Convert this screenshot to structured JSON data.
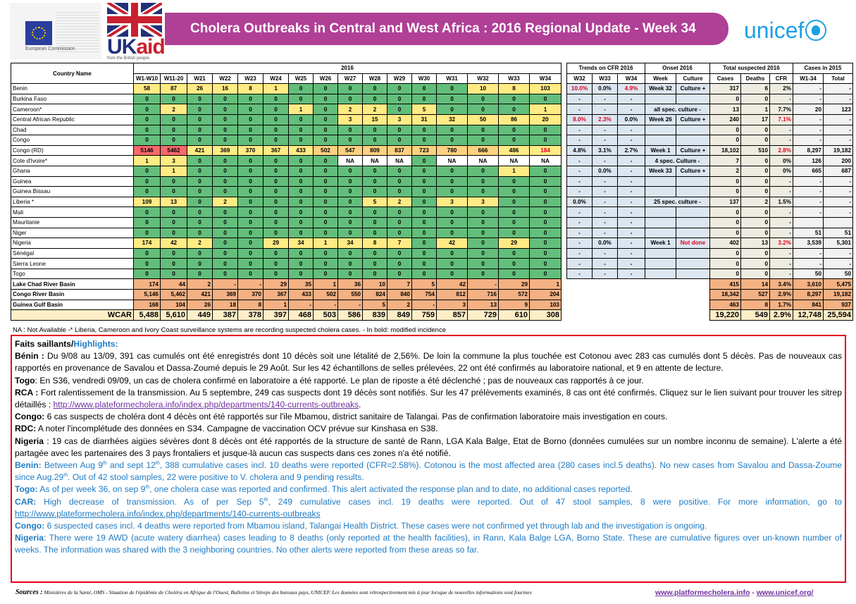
{
  "header": {
    "ec_logo_text": "European Commission",
    "ukaid_uk": "UK",
    "ukaid_aid": "aid",
    "ukaid_sub": "from the British people",
    "title": "Cholera Outbreaks in Central and West Africa : 2016 Regional Update - Week 34",
    "unicef_text": "unicef"
  },
  "table": {
    "headers": {
      "country": "Country Name",
      "year": "2016",
      "weeks": [
        "W1-W10",
        "W11-20",
        "W21",
        "W22",
        "W23",
        "W24",
        "W25",
        "W26",
        "W27",
        "W28",
        "W29",
        "W30",
        "W31",
        "W32",
        "W33",
        "W34"
      ],
      "trends": "Trends on CFR 2016",
      "trend_weeks": [
        "W32",
        "W33",
        "W34"
      ],
      "onset": "Onset 2016",
      "onset_cols": [
        "Week",
        "Culture"
      ],
      "total": "Total suspected 2016",
      "total_cols": [
        "Cases",
        "Deaths",
        "CFR"
      ],
      "cases2015": "Cases in 2015",
      "cases2015_cols": [
        "W1-34",
        "Total"
      ]
    },
    "rows": [
      {
        "name": "Benin",
        "weeks": [
          "58",
          "87",
          "26",
          "16",
          "8",
          "1",
          "0",
          "0",
          "0",
          "0",
          "0",
          "0",
          "0",
          "10",
          "8",
          "103"
        ],
        "trends": [
          "10.0%",
          "0.0%",
          "4.9%"
        ],
        "onset_week": "Week 32",
        "onset_culture": "Culture +",
        "cases": "317",
        "deaths": "6",
        "cfr": "2%",
        "w134": "-",
        "total2015": "-"
      },
      {
        "name": "Burkina Faso",
        "weeks": [
          "0",
          "0",
          "0",
          "0",
          "0",
          "0",
          "0",
          "0",
          "0",
          "0",
          "0",
          "0",
          "0",
          "0",
          "0",
          "0"
        ],
        "trends": [
          "-",
          "-",
          "-"
        ],
        "onset_week": "",
        "onset_culture": "",
        "cases": "0",
        "deaths": "0",
        "cfr": "-",
        "w134": "-",
        "total2015": "-"
      },
      {
        "name": "Cameroon*",
        "weeks": [
          "0",
          "2",
          "0",
          "0",
          "0",
          "0",
          "1",
          "0",
          "2",
          "2",
          "0",
          "5",
          "0",
          "0",
          "0",
          "1"
        ],
        "trends": [
          "-",
          "-",
          "-"
        ],
        "onset_merged": "all spec. culture -",
        "cases": "13",
        "deaths": "1",
        "cfr": "7.7%",
        "w134": "20",
        "total2015": "123"
      },
      {
        "name": "Central African Republic",
        "weeks": [
          "0",
          "0",
          "0",
          "0",
          "0",
          "0",
          "0",
          "0",
          "3",
          "15",
          "3",
          "31",
          "32",
          "50",
          "86",
          "20"
        ],
        "trends": [
          "8.0%",
          "2.3%",
          "0.0%"
        ],
        "onset_week": "Week 26",
        "onset_culture": "Culture +",
        "cases": "240",
        "deaths": "17",
        "cfr": "7.1%",
        "w134": "-",
        "total2015": "-"
      },
      {
        "name": "Chad",
        "weeks": [
          "0",
          "0",
          "0",
          "0",
          "0",
          "0",
          "0",
          "0",
          "0",
          "0",
          "0",
          "0",
          "0",
          "0",
          "0",
          "0"
        ],
        "trends": [
          "-",
          "-",
          "-"
        ],
        "onset_week": "",
        "onset_culture": "",
        "cases": "0",
        "deaths": "0",
        "cfr": "-",
        "w134": "-",
        "total2015": "-"
      },
      {
        "name": "Congo",
        "weeks": [
          "0",
          "0",
          "0",
          "0",
          "0",
          "0",
          "0",
          "0",
          "0",
          "0",
          "0",
          "0",
          "0",
          "0",
          "0",
          "0"
        ],
        "trends": [
          "-",
          "-",
          "-"
        ],
        "onset_week": "",
        "onset_culture": "",
        "cases": "0",
        "deaths": "0",
        "cfr": "-",
        "w134": "-",
        "total2015": "-"
      },
      {
        "name": "Congo (RD)",
        "weeks": [
          "5146",
          "5462",
          "421",
          "369",
          "370",
          "367",
          "433",
          "502",
          "547",
          "809",
          "837",
          "723",
          "780",
          "666",
          "486",
          "184"
        ],
        "trends": [
          "4.8%",
          "3.1%",
          "2.7%"
        ],
        "onset_week": "Week 1",
        "onset_culture": "Culture +",
        "cases": "18,102",
        "deaths": "510",
        "cfr": "2.8%",
        "w134": "8,297",
        "total2015": "19,182"
      },
      {
        "name": "Cote d'Ivoire*",
        "weeks": [
          "1",
          "3",
          "0",
          "0",
          "0",
          "0",
          "0",
          "0",
          "NA",
          "NA",
          "NA",
          "0",
          "NA",
          "NA",
          "NA",
          "NA"
        ],
        "trends": [
          "-",
          "-",
          "-"
        ],
        "onset_merged": "4 spec. Culture -",
        "cases": "7",
        "deaths": "0",
        "cfr": "0%",
        "w134": "126",
        "total2015": "200"
      },
      {
        "name": "Ghana",
        "weeks": [
          "0",
          "1",
          "0",
          "0",
          "0",
          "0",
          "0",
          "0",
          "0",
          "0",
          "0",
          "0",
          "0",
          "0",
          "1",
          "0"
        ],
        "trends": [
          "-",
          "0.0%",
          "-"
        ],
        "onset_week": "Week 33",
        "onset_culture": "Culture +",
        "cases": "2",
        "deaths": "0",
        "cfr": "0%",
        "w134": "665",
        "total2015": "687"
      },
      {
        "name": "Guinea",
        "weeks": [
          "0",
          "0",
          "0",
          "0",
          "0",
          "0",
          "0",
          "0",
          "0",
          "0",
          "0",
          "0",
          "0",
          "0",
          "0",
          "0"
        ],
        "trends": [
          "-",
          "-",
          "-"
        ],
        "onset_week": "",
        "onset_culture": "",
        "cases": "0",
        "deaths": "0",
        "cfr": "-",
        "w134": "-",
        "total2015": "-"
      },
      {
        "name": "Guinea Bissau",
        "weeks": [
          "0",
          "0",
          "0",
          "0",
          "0",
          "0",
          "0",
          "0",
          "0",
          "0",
          "0",
          "0",
          "0",
          "0",
          "0",
          "0"
        ],
        "trends": [
          "-",
          "-",
          "-"
        ],
        "onset_week": "",
        "onset_culture": "",
        "cases": "0",
        "deaths": "0",
        "cfr": "-",
        "w134": "-",
        "total2015": "-"
      },
      {
        "name": "Liberia *",
        "weeks": [
          "109",
          "13",
          "0",
          "2",
          "0",
          "0",
          "0",
          "0",
          "0",
          "5",
          "2",
          "0",
          "3",
          "3",
          "0",
          "0"
        ],
        "trends": [
          "0.0%",
          "-",
          "-"
        ],
        "onset_merged": "25 spec. culture -",
        "cases": "137",
        "deaths": "2",
        "cfr": "1.5%",
        "w134": "-",
        "total2015": "-"
      },
      {
        "name": "Mali",
        "weeks": [
          "0",
          "0",
          "0",
          "0",
          "0",
          "0",
          "0",
          "0",
          "0",
          "0",
          "0",
          "0",
          "0",
          "0",
          "0",
          "0"
        ],
        "trends": [
          "-",
          "-",
          "-"
        ],
        "onset_week": "",
        "onset_culture": "",
        "cases": "0",
        "deaths": "0",
        "cfr": "-",
        "w134": "-",
        "total2015": "-"
      },
      {
        "name": "Mauritanie",
        "weeks": [
          "0",
          "0",
          "0",
          "0",
          "0",
          "0",
          "0",
          "0",
          "0",
          "0",
          "0",
          "0",
          "0",
          "0",
          "0",
          "0"
        ],
        "trends": [
          "-",
          "-",
          "-"
        ],
        "onset_week": "",
        "onset_culture": "",
        "cases": "0",
        "deaths": "0",
        "cfr": "-",
        "w134": "",
        "total2015": ""
      },
      {
        "name": "Niger",
        "weeks": [
          "0",
          "0",
          "0",
          "0",
          "0",
          "0",
          "0",
          "0",
          "0",
          "0",
          "0",
          "0",
          "0",
          "0",
          "0",
          "0"
        ],
        "trends": [
          "-",
          "-",
          "-"
        ],
        "onset_week": "",
        "onset_culture": "",
        "cases": "0",
        "deaths": "0",
        "cfr": "-",
        "w134": "51",
        "total2015": "51"
      },
      {
        "name": "Nigeria",
        "weeks": [
          "174",
          "42",
          "2",
          "0",
          "0",
          "29",
          "34",
          "1",
          "34",
          "8",
          "7",
          "0",
          "42",
          "0",
          "29",
          "0"
        ],
        "trends": [
          "-",
          "0.0%",
          "-"
        ],
        "onset_week": "Week 1",
        "onset_culture": "Not done",
        "cases": "402",
        "deaths": "13",
        "cfr": "3.2%",
        "w134": "3,539",
        "total2015": "5,301"
      },
      {
        "name": "Sénégal",
        "weeks": [
          "0",
          "0",
          "0",
          "0",
          "0",
          "0",
          "0",
          "0",
          "0",
          "0",
          "0",
          "0",
          "0",
          "0",
          "0",
          "0"
        ],
        "trends": [
          "-",
          "-",
          "-"
        ],
        "onset_week": "",
        "onset_culture": "",
        "cases": "0",
        "deaths": "0",
        "cfr": "-",
        "w134": "-",
        "total2015": "-"
      },
      {
        "name": "Sierra Leone",
        "weeks": [
          "0",
          "0",
          "0",
          "0",
          "0",
          "0",
          "0",
          "0",
          "0",
          "0",
          "0",
          "0",
          "0",
          "0",
          "0",
          "0"
        ],
        "trends": [
          "-",
          "-",
          "-"
        ],
        "onset_week": "",
        "onset_culture": "",
        "cases": "0",
        "deaths": "0",
        "cfr": "-",
        "w134": "-",
        "total2015": "-"
      },
      {
        "name": "Togo",
        "weeks": [
          "0",
          "0",
          "0",
          "0",
          "0",
          "0",
          "0",
          "0",
          "0",
          "0",
          "0",
          "0",
          "0",
          "0",
          "0",
          "0"
        ],
        "trends": [
          "-",
          "-",
          "-"
        ],
        "onset_week": "",
        "onset_culture": "",
        "cases": "0",
        "deaths": "0",
        "cfr": "-",
        "w134": "50",
        "total2015": "50"
      }
    ],
    "basins": [
      {
        "name": "Lake Chad River Basin",
        "weeks": [
          "174",
          "44",
          "2",
          "-",
          "-",
          "29",
          "35",
          "1",
          "36",
          "10",
          "7",
          "5",
          "42",
          "-",
          "29",
          "1"
        ],
        "cases": "415",
        "deaths": "14",
        "cfr": "3.4%",
        "w134": "3,610",
        "total2015": "5,475"
      },
      {
        "name": "Congo River Basin",
        "weeks": [
          "5,146",
          "5,462",
          "421",
          "369",
          "370",
          "367",
          "433",
          "502",
          "550",
          "824",
          "840",
          "754",
          "812",
          "716",
          "572",
          "204"
        ],
        "cases": "18,342",
        "deaths": "527",
        "cfr": "2.9%",
        "w134": "8,297",
        "total2015": "19,182"
      },
      {
        "name": "Guinea Gulf Basin",
        "weeks": [
          "168",
          "104",
          "26",
          "18",
          "8",
          "1",
          "-",
          "-",
          "-",
          "5",
          "2",
          "-",
          "3",
          "13",
          "9",
          "103"
        ],
        "cases": "463",
        "deaths": "8",
        "cfr": "1.7%",
        "w134": "841",
        "total2015": "937"
      }
    ],
    "wcar": {
      "name": "WCAR",
      "weeks": [
        "5,488",
        "5,610",
        "449",
        "387",
        "378",
        "397",
        "468",
        "503",
        "586",
        "839",
        "849",
        "759",
        "857",
        "729",
        "610",
        "308"
      ],
      "cases": "19,220",
      "deaths": "549",
      "cfr": "2.9%",
      "w134": "12,748",
      "total2015": "25,594"
    },
    "note": "NA : Not Available -* Liberia, Cameroon and Ivory Coast surveillance systems are recording suspected cholera cases. - In bold: modified incidence"
  },
  "highlights": {
    "title_fr": "Faits saillants/",
    "title_en": "Highlights:",
    "fr": [
      {
        "label": "Bénin :",
        "text": " Du 9/08 au 13/09, 391 cas cumulés ont été enregistrés dont 10 décès soit une létalité de 2,56%. De loin la commune la plus touchée est Cotonou avec 283 cas cumulés dont 5 décès. Pas de nouveaux cas rapportés en provenance de Savalou et Dassa-Zoumé depuis le 29 Août. Sur les 42 échantillons de selles prélevées, 22 ont été confirmés au laboratoire national, et 9 en attente de lecture."
      },
      {
        "label": "Togo",
        "text": ": En S36, vendredi 09/09, un cas de cholera confirmé en laboratoire a été rapporté. Le plan de riposte a été déclenché ; pas de nouveaux cas rapportés à ce jour."
      },
      {
        "label": "RCA :",
        "text": " Fort ralentissement de la transmission. Au 5 septembre, 249 cas suspects dont 19 décès sont notifiés. Sur les 47 prélèvements examinés, 8 cas ont été confirmés. Cliquez sur le lien suivant pour trouver les sitrep détaillés : ",
        "link": "http://www.plateformecholera.info/index.php/departments/140-currents-outbreaks",
        "after": "."
      },
      {
        "label": "Congo:",
        "text": " 6 cas suspects de choléra dont 4 décès ont été rapportés sur l'ile Mbamou, district sanitaire de Talangai. Pas de confirmation laboratoire mais investigation en cours."
      },
      {
        "label": "RDC:",
        "text": " A noter l'incomplétude des données en S34. Campagne de vaccination OCV prévue sur Kinshasa en S38."
      },
      {
        "label": "Nigeria",
        "text": " : 19 cas de diarrhées aigües sévères dont 8 décès ont été rapportés de la structure de santé de Rann, LGA Kala Balge, Etat de Borno (données cumulées sur un nombre inconnu de semaine). L'alerte a été partagée avec les partenaires des 3 pays frontaliers et jusque-là aucun cas suspects dans ces zones n'a été notifié."
      }
    ],
    "en": [
      {
        "label": "Benin:",
        "text": " Between Aug 9th and sept 12th, 388 cumulative cases incl. 10 deaths were reported (CFR=2.58%). Cotonou is the most affected area (280 cases incl.5 deaths). No new cases from Savalou and Dassa-Zoume since Aug.29th. Out of 42 stool samples, 22 were positive to V. cholera and 9 pending results."
      },
      {
        "label": "Togo:",
        "text": " As of per week 36, on sep 9th, one cholera case was reported and confirmed. This alert activated the response plan and to date, no additional cases reported."
      },
      {
        "label": "CAR:",
        "text": " High decrease of transmission. As of per Sep 5th, 249 cumulative cases incl. 19 deaths were reported. Out of 47 stool samples, 8 were positive. For more information, go to ",
        "link": "http://www.plateformecholera.info/index.php/departments/140-currents-outbreaks"
      },
      {
        "label": "Congo:",
        "text": " 6 suspected cases incl. 4 deaths were reported from Mbamou island, Talangai Health District. These cases were not confirmed yet through lab and the investigation is ongoing."
      },
      {
        "label": "Nigeria",
        "text": ": There were 19 AWD (acute watery diarrhea) cases leading to 8 deaths (only reported at the health facilities), in Rann, Kala Balge LGA, Borno State. These are cumulative figures over un-known number of weeks. The information was shared with the 3 neighboring countries. No other alerts were reported from these areas so far."
      }
    ]
  },
  "footer": {
    "sources_label": "Sources :",
    "sources_text": " Ministères de la Santé, OMS - Situation de l'épidémie de Choléra en Afrique de l'Ouest, Bulletins et  Sitreps des bureaux pays,  UNICEF.  Les données sont rétrospectivement mis à jour lorsque de nouvelles informations sont fournies",
    "link1": "www.platformecholera.info",
    "sep": " - ",
    "link2": "www.unicef.org/"
  },
  "colors": {
    "title_bar": "#b03f96",
    "green": "#63be7b",
    "yellow": "#ffeb84",
    "orange": "#fdd17f",
    "red": "#f8696b",
    "basin": "#f4b183",
    "highlight_border": "#e3001b",
    "highlight_blue": "#1f7bc4",
    "unicef_blue": "#1ca0e3"
  }
}
